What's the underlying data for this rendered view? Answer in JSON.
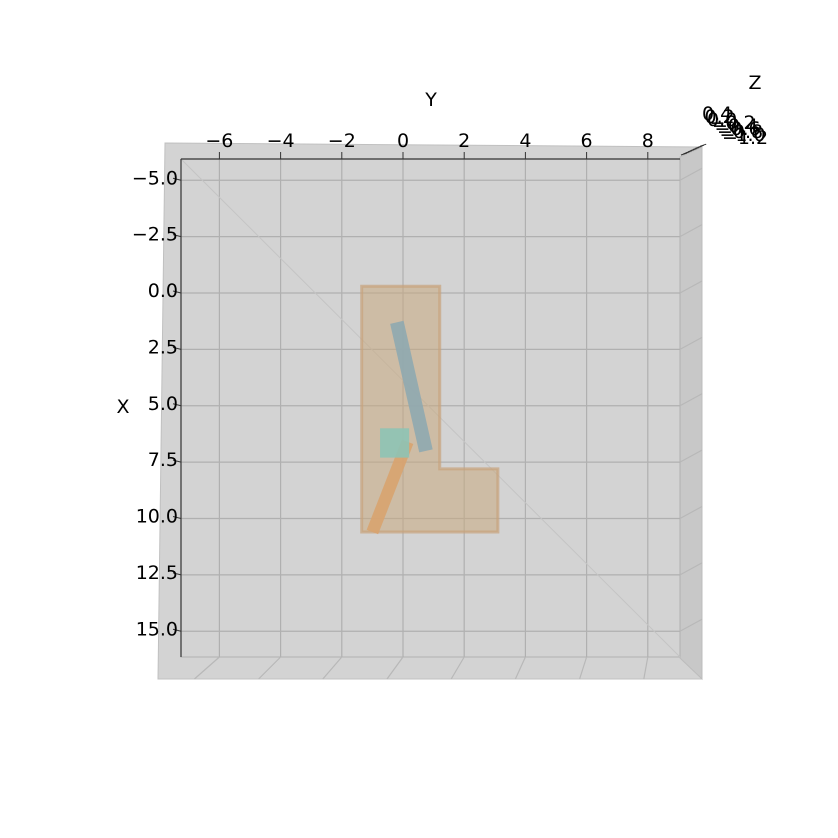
{
  "chart_data": {
    "type": "3d-scatter-scene",
    "title": "",
    "xlabel": "X",
    "ylabel": "Y",
    "zlabel": "Z",
    "view": "top-down",
    "y_ticks": [
      "−6",
      "−4",
      "−2",
      "0",
      "2",
      "4",
      "6",
      "8"
    ],
    "y_tick_values": [
      -6,
      -4,
      -2,
      0,
      2,
      4,
      6,
      8
    ],
    "x_ticks": [
      "−5.0",
      "−2.5",
      "0.0",
      "2.5",
      "5.0",
      "7.5",
      "10.0",
      "12.5",
      "15.0"
    ],
    "x_tick_values": [
      -5,
      -2.5,
      0,
      2.5,
      5,
      7.5,
      10,
      12.5,
      15
    ],
    "z_ticks": [
      "0.4",
      "0.2",
      "0.0",
      "−0.2",
      "−0.4",
      "−0.6",
      "−0.8",
      "−1.0",
      "−1.2"
    ],
    "y_range": [
      -7.2,
      9.1
    ],
    "x_range": [
      -6.5,
      16.2
    ],
    "objects": [
      {
        "name": "l-shaped-base",
        "color": "#c9a97f",
        "outline_y": [
          -1.35,
          1.2,
          1.2,
          3.1,
          3.1,
          -1.35
        ],
        "outline_x": [
          -0.3,
          -0.3,
          7.8,
          7.8,
          10.6,
          10.6
        ]
      },
      {
        "name": "blue-rod",
        "color": "#8fa8b0",
        "y": [
          -0.2,
          0.75
        ],
        "x": [
          1.3,
          7.0
        ],
        "width": 0.45
      },
      {
        "name": "orange-rod",
        "color": "#d8a36f",
        "y": [
          -1.0,
          0.15
        ],
        "x": [
          10.6,
          6.6
        ],
        "width": 0.4
      },
      {
        "name": "teal-box",
        "color": "#8ec3b5",
        "y": [
          -0.75,
          0.2
        ],
        "x": [
          6.0,
          7.3
        ]
      }
    ]
  }
}
